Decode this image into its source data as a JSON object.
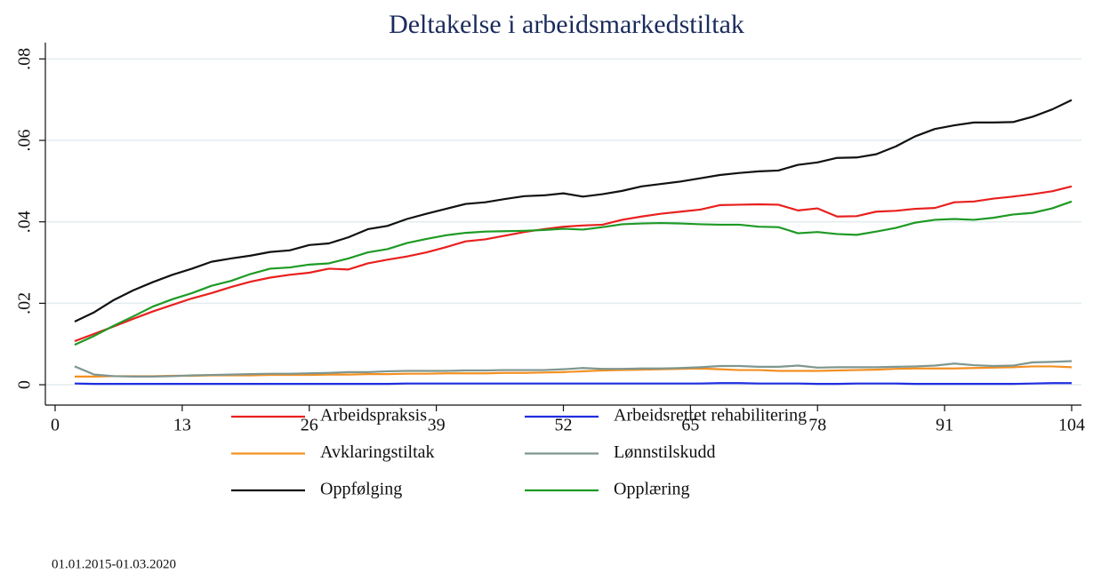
{
  "chart_data": {
    "type": "line",
    "title": "Deltakelse i arbeidsmarkedstiltak",
    "note": "01.01.2015-01.03.2020",
    "x": [
      2,
      4,
      6,
      8,
      10,
      12,
      14,
      16,
      18,
      20,
      22,
      24,
      26,
      28,
      30,
      32,
      34,
      36,
      38,
      40,
      42,
      44,
      46,
      48,
      50,
      52,
      54,
      56,
      58,
      60,
      62,
      64,
      66,
      68,
      70,
      72,
      74,
      76,
      78,
      80,
      82,
      84,
      86,
      88,
      90,
      92,
      94,
      96,
      98,
      100,
      102,
      104
    ],
    "xlim": [
      -1,
      105
    ],
    "xticks": [
      0,
      13,
      26,
      39,
      52,
      65,
      78,
      91,
      104
    ],
    "ylim": [
      -0.005,
      0.084
    ],
    "yticks": [
      0,
      {
        "value": 0.02,
        "label": ".02"
      },
      {
        "value": 0.04,
        "label": ".04"
      },
      {
        "value": 0.06,
        "label": ".06"
      },
      {
        "value": 0.08,
        "label": ".08"
      }
    ],
    "grid": true,
    "series": [
      {
        "name": "Arbeidspraksis",
        "color": "#e8201e",
        "values": [
          0.0107,
          0.0125,
          0.0143,
          0.0162,
          0.018,
          0.0196,
          0.0212,
          0.0225,
          0.024,
          0.0253,
          0.0263,
          0.027,
          0.0275,
          0.0285,
          0.0283,
          0.0298,
          0.0307,
          0.0315,
          0.0325,
          0.0338,
          0.0352,
          0.0357,
          0.0366,
          0.0375,
          0.0382,
          0.0388,
          0.0391,
          0.0393,
          0.0405,
          0.0413,
          0.042,
          0.0425,
          0.043,
          0.0441,
          0.0442,
          0.0443,
          0.0442,
          0.0428,
          0.0433,
          0.0413,
          0.0414,
          0.0425,
          0.0427,
          0.0432,
          0.0434,
          0.0448,
          0.045,
          0.0457,
          0.0462,
          0.0468,
          0.0475,
          0.0487
        ]
      },
      {
        "name": "Arbeidsrettet rehabilitering",
        "color": "#1f2ee0",
        "values": [
          0.0003,
          0.0002,
          0.0002,
          0.0002,
          0.0002,
          0.0002,
          0.0002,
          0.0002,
          0.0002,
          0.0002,
          0.0002,
          0.0002,
          0.0002,
          0.0002,
          0.0002,
          0.0002,
          0.0002,
          0.0003,
          0.0003,
          0.0003,
          0.0003,
          0.0003,
          0.0003,
          0.0003,
          0.0003,
          0.0003,
          0.0003,
          0.0003,
          0.0003,
          0.0003,
          0.0003,
          0.0003,
          0.0003,
          0.0004,
          0.0004,
          0.0003,
          0.0003,
          0.0003,
          0.0002,
          0.0002,
          0.0003,
          0.0003,
          0.0003,
          0.0002,
          0.0002,
          0.0002,
          0.0002,
          0.0002,
          0.0002,
          0.0003,
          0.0004,
          0.0004
        ]
      },
      {
        "name": "Avklaringstiltak",
        "color": "#f39022",
        "values": [
          0.002,
          0.002,
          0.0021,
          0.0021,
          0.0021,
          0.0022,
          0.0022,
          0.0023,
          0.0023,
          0.0023,
          0.0024,
          0.0024,
          0.0024,
          0.0025,
          0.0025,
          0.0026,
          0.0026,
          0.0027,
          0.0027,
          0.0028,
          0.0028,
          0.0028,
          0.0029,
          0.0029,
          0.003,
          0.0031,
          0.0033,
          0.0035,
          0.0036,
          0.0037,
          0.0038,
          0.0039,
          0.004,
          0.0038,
          0.0036,
          0.0036,
          0.0034,
          0.0034,
          0.0034,
          0.0035,
          0.0036,
          0.0037,
          0.0039,
          0.004,
          0.004,
          0.004,
          0.0041,
          0.0042,
          0.0043,
          0.0045,
          0.0045,
          0.0043
        ]
      },
      {
        "name": "Lønnstilskudd",
        "color": "#7e9690",
        "values": [
          0.0045,
          0.0025,
          0.0021,
          0.002,
          0.002,
          0.0021,
          0.0023,
          0.0024,
          0.0025,
          0.0026,
          0.0027,
          0.0027,
          0.0028,
          0.0029,
          0.0031,
          0.0031,
          0.0033,
          0.0034,
          0.0034,
          0.0034,
          0.0035,
          0.0035,
          0.0036,
          0.0036,
          0.0036,
          0.0038,
          0.0041,
          0.0039,
          0.0039,
          0.004,
          0.004,
          0.0041,
          0.0043,
          0.0046,
          0.0046,
          0.0044,
          0.0044,
          0.0047,
          0.0042,
          0.0043,
          0.0043,
          0.0043,
          0.0044,
          0.0045,
          0.0047,
          0.0052,
          0.0048,
          0.0046,
          0.0047,
          0.0055,
          0.0056,
          0.0058
        ]
      },
      {
        "name": "Oppfølging",
        "color": "#111111",
        "values": [
          0.0155,
          0.0178,
          0.0208,
          0.0232,
          0.0252,
          0.027,
          0.0285,
          0.0302,
          0.031,
          0.0317,
          0.0326,
          0.033,
          0.0343,
          0.0347,
          0.0362,
          0.0382,
          0.039,
          0.0407,
          0.042,
          0.0432,
          0.0444,
          0.0448,
          0.0456,
          0.0463,
          0.0465,
          0.047,
          0.0462,
          0.0468,
          0.0476,
          0.0487,
          0.0493,
          0.0499,
          0.0507,
          0.0515,
          0.052,
          0.0524,
          0.0526,
          0.054,
          0.0546,
          0.0557,
          0.0558,
          0.0566,
          0.0585,
          0.061,
          0.0628,
          0.0637,
          0.0644,
          0.0644,
          0.0645,
          0.0658,
          0.0676,
          0.0699
        ]
      },
      {
        "name": "Opplæring",
        "color": "#1e9a24",
        "values": [
          0.0098,
          0.012,
          0.0145,
          0.0168,
          0.0192,
          0.021,
          0.0225,
          0.0243,
          0.0255,
          0.0272,
          0.0285,
          0.0288,
          0.0295,
          0.0298,
          0.031,
          0.0325,
          0.0333,
          0.0348,
          0.0358,
          0.0367,
          0.0373,
          0.0376,
          0.0377,
          0.0378,
          0.038,
          0.0383,
          0.0381,
          0.0387,
          0.0394,
          0.0396,
          0.0397,
          0.0396,
          0.0394,
          0.0393,
          0.0393,
          0.0388,
          0.0387,
          0.0372,
          0.0375,
          0.037,
          0.0368,
          0.0376,
          0.0385,
          0.0398,
          0.0405,
          0.0407,
          0.0405,
          0.041,
          0.0418,
          0.0422,
          0.0433,
          0.045
        ]
      }
    ]
  }
}
